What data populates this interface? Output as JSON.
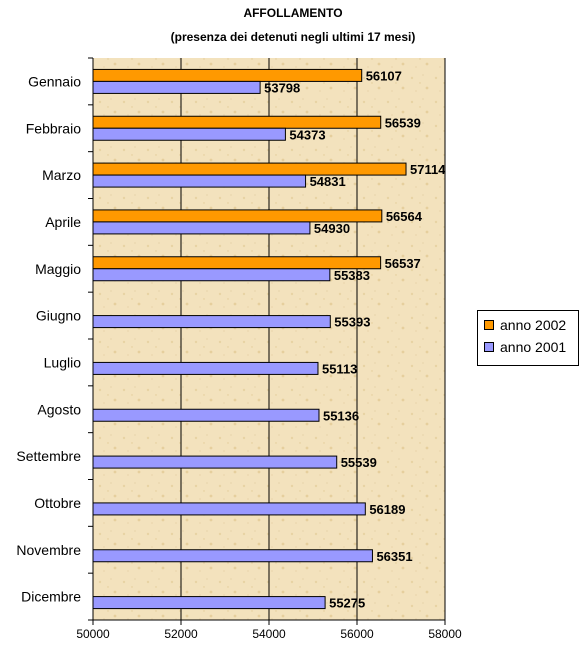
{
  "chart_data": {
    "type": "bar",
    "orientation": "horizontal",
    "title": "AFFOLLAMENTO",
    "subtitle": "(presenza dei detenuti negli ultimi 17 mesi)",
    "categories": [
      "Gennaio",
      "Febbraio",
      "Marzo",
      "Aprile",
      "Maggio",
      "Giugno",
      "Luglio",
      "Agosto",
      "Settembre",
      "Ottobre",
      "Novembre",
      "Dicembre"
    ],
    "series": [
      {
        "name": "anno 2002",
        "color": "#ff9900",
        "values": [
          56107,
          56539,
          57114,
          56564,
          56537,
          null,
          null,
          null,
          null,
          null,
          null,
          null
        ]
      },
      {
        "name": "anno 2001",
        "color": "#9999ff",
        "values": [
          53798,
          54373,
          54831,
          54930,
          55383,
          55393,
          55113,
          55136,
          55539,
          56189,
          56351,
          55275
        ]
      }
    ],
    "xlim": [
      50000,
      58000
    ],
    "xticks": [
      50000,
      52000,
      54000,
      56000,
      58000
    ],
    "legend": "right",
    "grid": true
  }
}
